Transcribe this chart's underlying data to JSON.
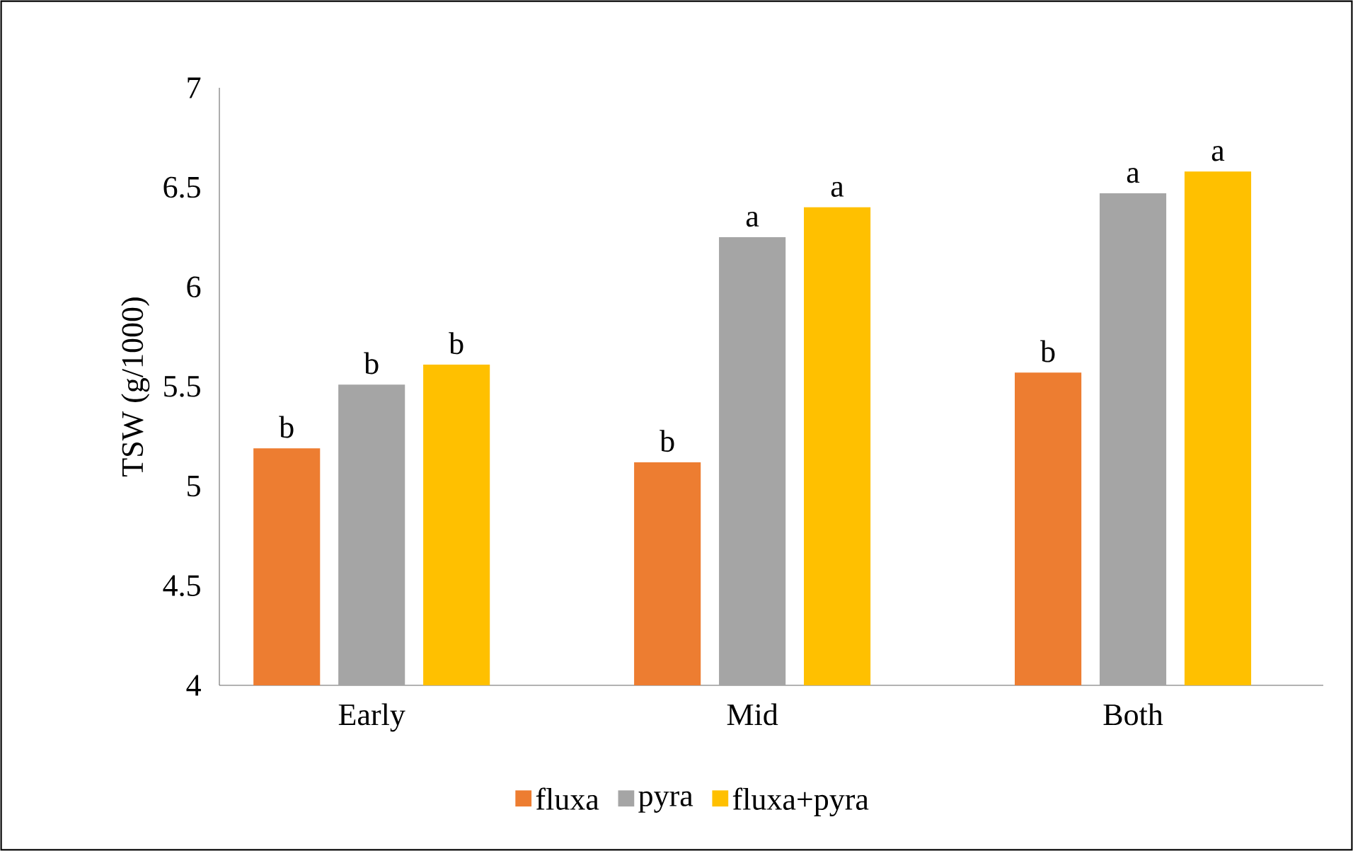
{
  "chart_data": {
    "type": "bar",
    "ylabel": "TSW (g/1000)",
    "categories": [
      "Early",
      "Mid",
      "Both"
    ],
    "series": [
      {
        "name": "fluxa",
        "color": "#ed7d31",
        "values": [
          5.19,
          5.12,
          5.57
        ],
        "value_labels": [
          "b",
          "b",
          "b"
        ]
      },
      {
        "name": "pyra",
        "color": "#a5a5a5",
        "values": [
          5.51,
          6.25,
          6.47
        ],
        "value_labels": [
          "b",
          "a",
          "a"
        ]
      },
      {
        "name": "fluxa+pyra",
        "color": "#ffc000",
        "values": [
          5.61,
          6.4,
          6.58
        ],
        "value_labels": [
          "b",
          "a",
          "a"
        ]
      }
    ],
    "ylim": [
      4,
      7
    ],
    "yticks": [
      4,
      4.5,
      5,
      5.5,
      6,
      6.5,
      7
    ],
    "grid": false,
    "legend": "bottom"
  }
}
